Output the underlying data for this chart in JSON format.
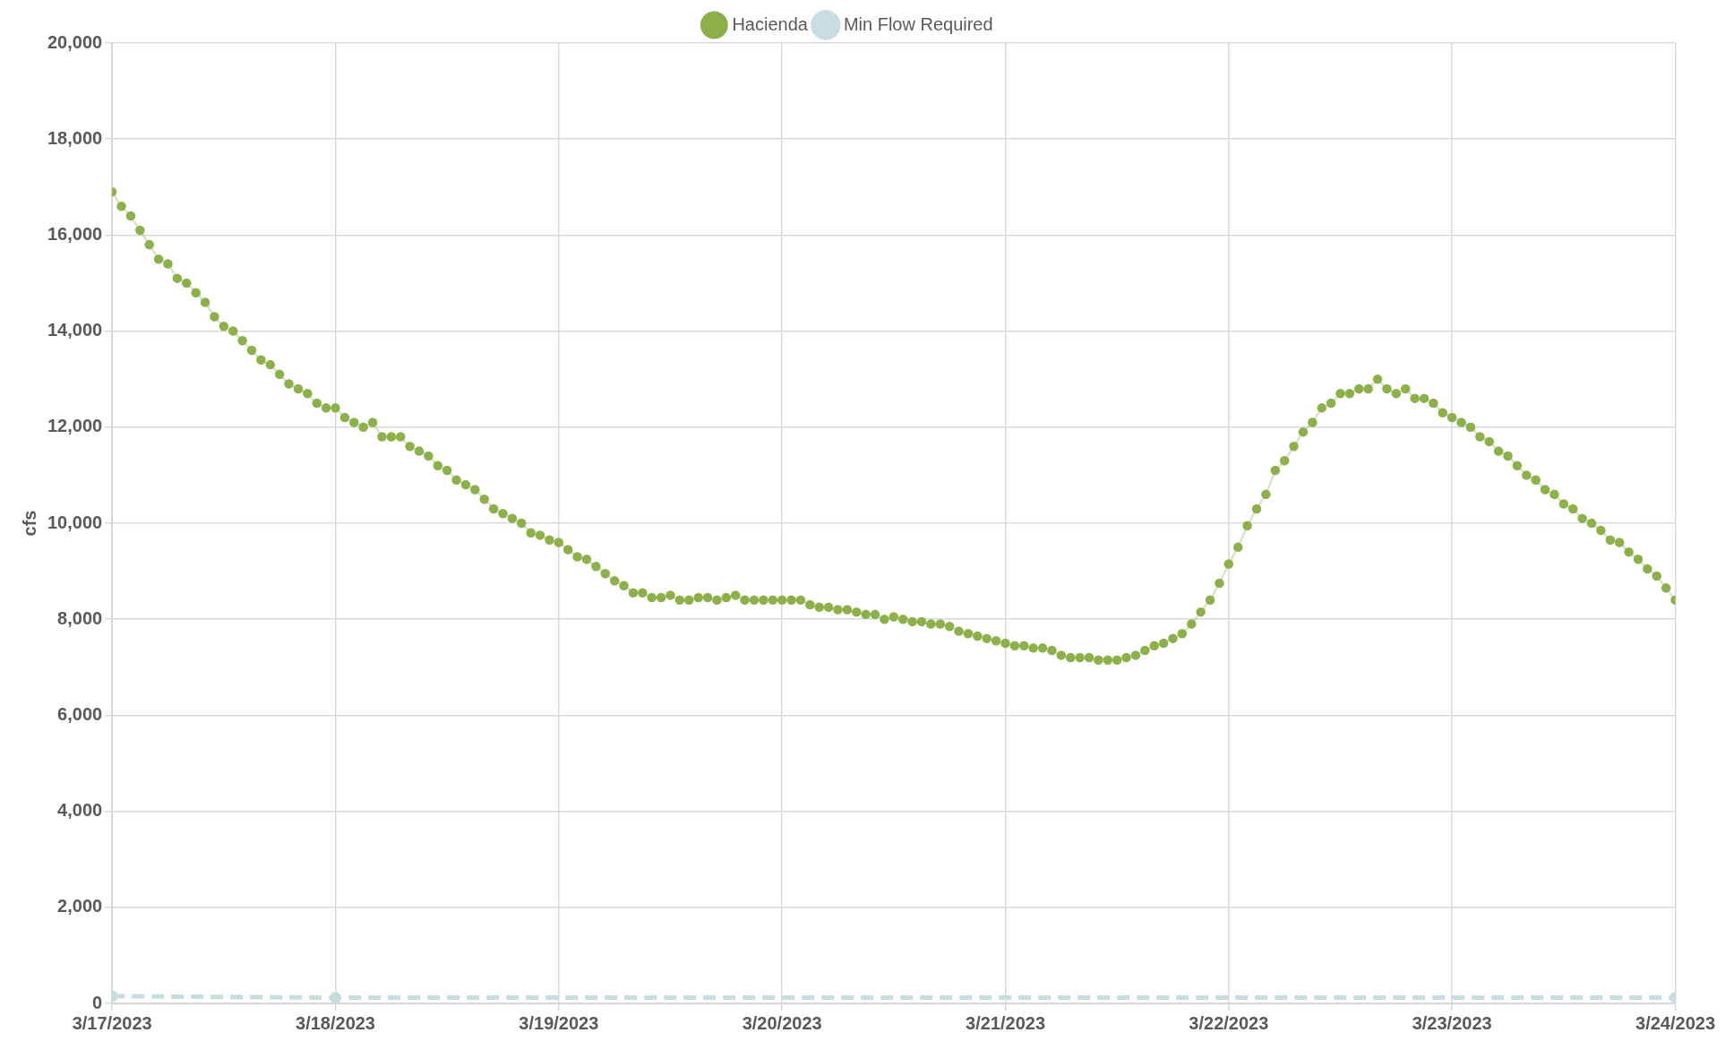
{
  "chart_data": {
    "type": "line",
    "ylabel": "cfs",
    "legend": "top",
    "grid": true,
    "marker": "circle",
    "xlim": [
      "2023-03-17",
      "2023-03-24"
    ],
    "xticks": [
      {
        "value": "2023-03-17",
        "label": "3/17/2023"
      },
      {
        "value": "2023-03-18",
        "label": "3/18/2023"
      },
      {
        "value": "2023-03-19",
        "label": "3/19/2023"
      },
      {
        "value": "2023-03-20",
        "label": "3/20/2023"
      },
      {
        "value": "2023-03-21",
        "label": "3/21/2023"
      },
      {
        "value": "2023-03-22",
        "label": "3/22/2023"
      },
      {
        "value": "2023-03-23",
        "label": "3/23/2023"
      },
      {
        "value": "2023-03-24",
        "label": "3/24/2023"
      }
    ],
    "ylim": [
      0,
      20000
    ],
    "yticks": [
      0,
      {
        "value": 2000,
        "label": "2,000"
      },
      {
        "value": 4000,
        "label": "4,000"
      },
      {
        "value": 6000,
        "label": "6,000"
      },
      {
        "value": 8000,
        "label": "8,000"
      },
      {
        "value": 10000,
        "label": "10,000"
      },
      {
        "value": 12000,
        "label": "12,000"
      },
      {
        "value": 14000,
        "label": "14,000"
      },
      {
        "value": 16000,
        "label": "16,000"
      },
      {
        "value": 18000,
        "label": "18,000"
      },
      {
        "value": 20000,
        "label": "20,000"
      }
    ],
    "series": [
      {
        "name": "Hacienda",
        "color": "#8db04a",
        "line_style": "solid",
        "x": [
          "2023-03-17T00:00",
          "2023-03-17T01:00",
          "2023-03-17T02:00",
          "2023-03-17T03:00",
          "2023-03-17T04:00",
          "2023-03-17T05:00",
          "2023-03-17T06:00",
          "2023-03-17T07:00",
          "2023-03-17T08:00",
          "2023-03-17T09:00",
          "2023-03-17T10:00",
          "2023-03-17T11:00",
          "2023-03-17T12:00",
          "2023-03-17T13:00",
          "2023-03-17T14:00",
          "2023-03-17T15:00",
          "2023-03-17T16:00",
          "2023-03-17T17:00",
          "2023-03-17T18:00",
          "2023-03-17T19:00",
          "2023-03-17T20:00",
          "2023-03-17T21:00",
          "2023-03-17T22:00",
          "2023-03-17T23:00",
          "2023-03-18T00:00",
          "2023-03-18T01:00",
          "2023-03-18T02:00",
          "2023-03-18T03:00",
          "2023-03-18T04:00",
          "2023-03-18T05:00",
          "2023-03-18T06:00",
          "2023-03-18T07:00",
          "2023-03-18T08:00",
          "2023-03-18T09:00",
          "2023-03-18T10:00",
          "2023-03-18T11:00",
          "2023-03-18T12:00",
          "2023-03-18T13:00",
          "2023-03-18T14:00",
          "2023-03-18T15:00",
          "2023-03-18T16:00",
          "2023-03-18T17:00",
          "2023-03-18T18:00",
          "2023-03-18T19:00",
          "2023-03-18T20:00",
          "2023-03-18T21:00",
          "2023-03-18T22:00",
          "2023-03-18T23:00",
          "2023-03-19T00:00",
          "2023-03-19T01:00",
          "2023-03-19T02:00",
          "2023-03-19T03:00",
          "2023-03-19T04:00",
          "2023-03-19T05:00",
          "2023-03-19T06:00",
          "2023-03-19T07:00",
          "2023-03-19T08:00",
          "2023-03-19T09:00",
          "2023-03-19T10:00",
          "2023-03-19T11:00",
          "2023-03-19T12:00",
          "2023-03-19T13:00",
          "2023-03-19T14:00",
          "2023-03-19T15:00",
          "2023-03-19T16:00",
          "2023-03-19T17:00",
          "2023-03-19T18:00",
          "2023-03-19T19:00",
          "2023-03-19T20:00",
          "2023-03-19T21:00",
          "2023-03-19T22:00",
          "2023-03-19T23:00",
          "2023-03-20T00:00",
          "2023-03-20T01:00",
          "2023-03-20T02:00",
          "2023-03-20T03:00",
          "2023-03-20T04:00",
          "2023-03-20T05:00",
          "2023-03-20T06:00",
          "2023-03-20T07:00",
          "2023-03-20T08:00",
          "2023-03-20T09:00",
          "2023-03-20T10:00",
          "2023-03-20T11:00",
          "2023-03-20T12:00",
          "2023-03-20T13:00",
          "2023-03-20T14:00",
          "2023-03-20T15:00",
          "2023-03-20T16:00",
          "2023-03-20T17:00",
          "2023-03-20T18:00",
          "2023-03-20T19:00",
          "2023-03-20T20:00",
          "2023-03-20T21:00",
          "2023-03-20T22:00",
          "2023-03-20T23:00",
          "2023-03-21T00:00",
          "2023-03-21T01:00",
          "2023-03-21T02:00",
          "2023-03-21T03:00",
          "2023-03-21T04:00",
          "2023-03-21T05:00",
          "2023-03-21T06:00",
          "2023-03-21T07:00",
          "2023-03-21T08:00",
          "2023-03-21T09:00",
          "2023-03-21T10:00",
          "2023-03-21T11:00",
          "2023-03-21T12:00",
          "2023-03-21T13:00",
          "2023-03-21T14:00",
          "2023-03-21T15:00",
          "2023-03-21T16:00",
          "2023-03-21T17:00",
          "2023-03-21T18:00",
          "2023-03-21T19:00",
          "2023-03-21T20:00",
          "2023-03-21T21:00",
          "2023-03-21T22:00",
          "2023-03-21T23:00",
          "2023-03-22T00:00",
          "2023-03-22T01:00",
          "2023-03-22T02:00",
          "2023-03-22T03:00",
          "2023-03-22T04:00",
          "2023-03-22T05:00",
          "2023-03-22T06:00",
          "2023-03-22T07:00",
          "2023-03-22T08:00",
          "2023-03-22T09:00",
          "2023-03-22T10:00",
          "2023-03-22T11:00",
          "2023-03-22T12:00",
          "2023-03-22T13:00",
          "2023-03-22T14:00",
          "2023-03-22T15:00",
          "2023-03-22T16:00",
          "2023-03-22T17:00",
          "2023-03-22T18:00",
          "2023-03-22T19:00",
          "2023-03-22T20:00",
          "2023-03-22T21:00",
          "2023-03-22T22:00",
          "2023-03-22T23:00",
          "2023-03-23T00:00",
          "2023-03-23T01:00",
          "2023-03-23T02:00",
          "2023-03-23T03:00",
          "2023-03-23T04:00",
          "2023-03-23T05:00",
          "2023-03-23T06:00",
          "2023-03-23T07:00",
          "2023-03-23T08:00",
          "2023-03-23T09:00",
          "2023-03-23T10:00",
          "2023-03-23T11:00",
          "2023-03-23T12:00",
          "2023-03-23T13:00",
          "2023-03-23T14:00",
          "2023-03-23T15:00",
          "2023-03-23T16:00",
          "2023-03-23T17:00",
          "2023-03-23T18:00",
          "2023-03-23T19:00",
          "2023-03-23T20:00",
          "2023-03-23T21:00",
          "2023-03-23T22:00",
          "2023-03-23T23:00",
          "2023-03-24T00:00"
        ],
        "values": [
          16900,
          16600,
          16400,
          16100,
          15800,
          15500,
          15400,
          15100,
          15000,
          14800,
          14600,
          14300,
          14100,
          14000,
          13800,
          13600,
          13400,
          13300,
          13100,
          12900,
          12800,
          12700,
          12500,
          12400,
          12400,
          12200,
          12100,
          12000,
          12100,
          11800,
          11800,
          11800,
          11600,
          11500,
          11400,
          11200,
          11100,
          10900,
          10800,
          10700,
          10500,
          10300,
          10200,
          10100,
          10000,
          9800,
          9750,
          9650,
          9600,
          9450,
          9300,
          9250,
          9100,
          8950,
          8800,
          8700,
          8550,
          8550,
          8450,
          8450,
          8500,
          8400,
          8400,
          8450,
          8450,
          8400,
          8450,
          8500,
          8400,
          8400,
          8400,
          8400,
          8400,
          8400,
          8400,
          8300,
          8250,
          8250,
          8200,
          8200,
          8150,
          8100,
          8100,
          8000,
          8050,
          8000,
          7950,
          7950,
          7900,
          7900,
          7850,
          7750,
          7700,
          7650,
          7600,
          7550,
          7500,
          7450,
          7450,
          7400,
          7400,
          7350,
          7250,
          7200,
          7200,
          7200,
          7150,
          7150,
          7150,
          7200,
          7250,
          7350,
          7450,
          7500,
          7600,
          7700,
          7900,
          8150,
          8400,
          8750,
          9150,
          9500,
          9950,
          10300,
          10600,
          11100,
          11300,
          11600,
          11900,
          12100,
          12400,
          12500,
          12700,
          12700,
          12800,
          12800,
          13000,
          12800,
          12700,
          12800,
          12600,
          12600,
          12500,
          12300,
          12200,
          12100,
          12000,
          11800,
          11700,
          11500,
          11400,
          11200,
          11000,
          10900,
          10700,
          10600,
          10400,
          10300,
          10100,
          10000,
          9850,
          9650,
          9600,
          9400,
          9250,
          9050,
          8900,
          8650,
          8400
        ]
      },
      {
        "name": "Min Flow Required",
        "color": "#c8dde0",
        "line_style": "dashed",
        "x": [
          "2023-03-17",
          "2023-03-18",
          "2023-03-24"
        ],
        "values": [
          150,
          120,
          120
        ]
      }
    ]
  }
}
